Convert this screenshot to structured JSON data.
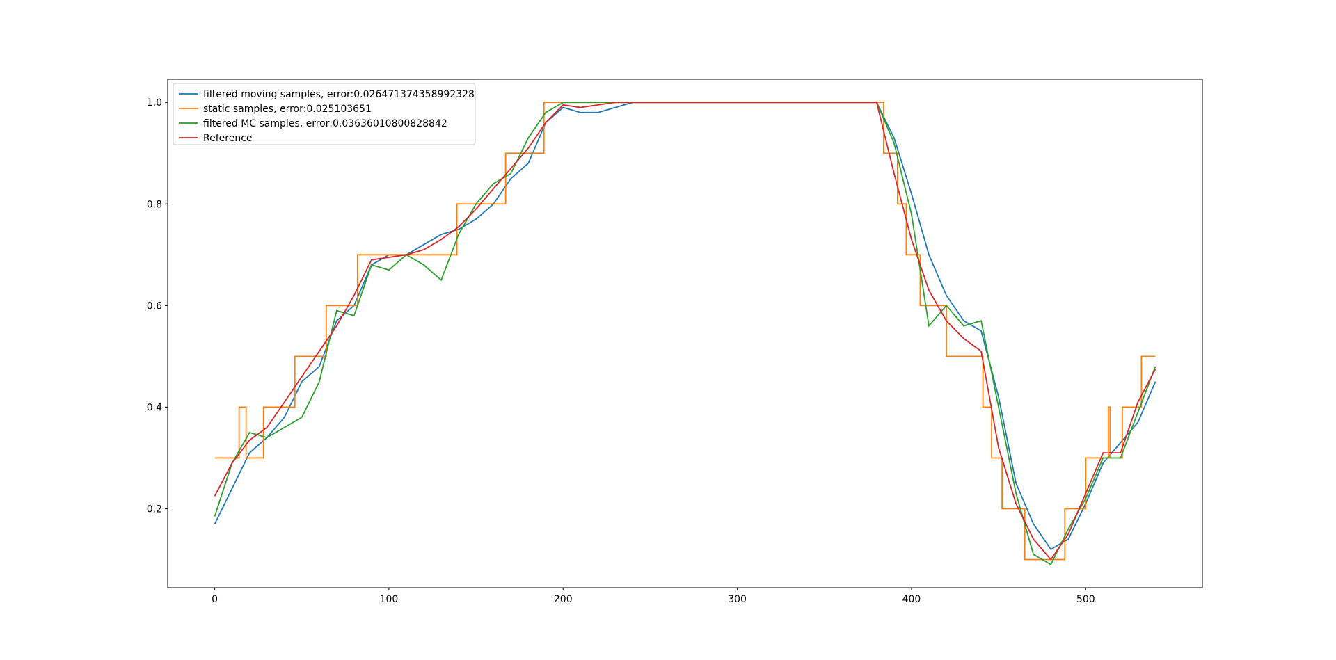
{
  "chart_data": {
    "type": "line",
    "x": [
      0,
      10,
      20,
      30,
      40,
      50,
      60,
      70,
      80,
      90,
      100,
      110,
      120,
      130,
      140,
      150,
      160,
      170,
      180,
      190,
      200,
      210,
      220,
      230,
      240,
      250,
      260,
      270,
      280,
      290,
      300,
      310,
      320,
      330,
      340,
      350,
      360,
      370,
      380,
      390,
      400,
      410,
      420,
      430,
      440,
      450,
      460,
      470,
      480,
      490,
      500,
      510,
      520,
      530,
      540
    ],
    "series": [
      {
        "name": "filtered moving samples, error:0.026471374358992328",
        "color": "#1f77b4",
        "values": [
          0.17,
          0.24,
          0.31,
          0.34,
          0.38,
          0.45,
          0.48,
          0.57,
          0.6,
          0.68,
          0.7,
          0.7,
          0.72,
          0.74,
          0.75,
          0.77,
          0.8,
          0.85,
          0.88,
          0.96,
          0.99,
          0.98,
          0.98,
          0.99,
          1,
          1,
          1,
          1,
          1,
          1,
          1,
          1,
          1,
          1,
          1,
          1,
          1,
          1,
          1,
          0.93,
          0.82,
          0.7,
          0.62,
          0.57,
          0.55,
          0.42,
          0.25,
          0.17,
          0.12,
          0.14,
          0.21,
          0.29,
          0.33,
          0.37,
          0.45
        ]
      },
      {
        "name": "static samples, error:0.025103651",
        "color": "#ff7f0e",
        "x": [
          0,
          14,
          14,
          18,
          18,
          28,
          28,
          46,
          46,
          64,
          64,
          82,
          82,
          139,
          139,
          167,
          167,
          189,
          189,
          384,
          384,
          392,
          392,
          397,
          397,
          405,
          405,
          420,
          420,
          441,
          441,
          446,
          446,
          452,
          452,
          465,
          465,
          488,
          488,
          500,
          500,
          513,
          513,
          514,
          514,
          521,
          521,
          532,
          532,
          540
        ],
        "values": [
          0.3,
          0.3,
          0.4,
          0.4,
          0.3,
          0.3,
          0.4,
          0.4,
          0.5,
          0.5,
          0.6,
          0.6,
          0.7,
          0.7,
          0.8,
          0.8,
          0.9,
          0.9,
          1,
          1,
          0.9,
          0.9,
          0.8,
          0.8,
          0.7,
          0.7,
          0.6,
          0.6,
          0.5,
          0.5,
          0.4,
          0.4,
          0.3,
          0.3,
          0.2,
          0.2,
          0.1,
          0.1,
          0.2,
          0.2,
          0.3,
          0.3,
          0.4,
          0.4,
          0.3,
          0.3,
          0.4,
          0.4,
          0.5,
          0.5
        ]
      },
      {
        "name": "filtered MC samples, error:0.03636010800828842",
        "color": "#2ca02c",
        "values": [
          0.185,
          0.29,
          0.35,
          0.34,
          0.36,
          0.38,
          0.45,
          0.59,
          0.58,
          0.68,
          0.67,
          0.7,
          0.68,
          0.65,
          0.74,
          0.8,
          0.84,
          0.86,
          0.93,
          0.98,
          1,
          1,
          1,
          1,
          1,
          1,
          1,
          1,
          1,
          1,
          1,
          1,
          1,
          1,
          1,
          1,
          1,
          1,
          1,
          0.92,
          0.78,
          0.56,
          0.6,
          0.56,
          0.57,
          0.4,
          0.23,
          0.11,
          0.09,
          0.16,
          0.22,
          0.3,
          0.3,
          0.39,
          0.48
        ]
      },
      {
        "name": "Reference",
        "color": "#d62728",
        "values": [
          0.225,
          0.29,
          0.335,
          0.36,
          0.41,
          0.46,
          0.51,
          0.56,
          0.62,
          0.69,
          0.695,
          0.7,
          0.71,
          0.73,
          0.755,
          0.79,
          0.83,
          0.87,
          0.91,
          0.96,
          0.995,
          0.99,
          0.995,
          1,
          1,
          1,
          1,
          1,
          1,
          1,
          1,
          1,
          1,
          1,
          1,
          1,
          1,
          1,
          1,
          0.86,
          0.73,
          0.63,
          0.57,
          0.535,
          0.51,
          0.32,
          0.21,
          0.14,
          0.1,
          0.15,
          0.23,
          0.31,
          0.31,
          0.41,
          0.475
        ]
      }
    ],
    "xlim": [
      -27,
      567
    ],
    "xticks": [
      0,
      100,
      200,
      300,
      400,
      500
    ],
    "ylim": [
      0.0445,
      1.0455
    ],
    "yticks": [
      0.2,
      0.4,
      0.6,
      0.8,
      {
        "value": 1,
        "label": "1.0"
      }
    ],
    "grid": false,
    "legend": "upper left"
  }
}
